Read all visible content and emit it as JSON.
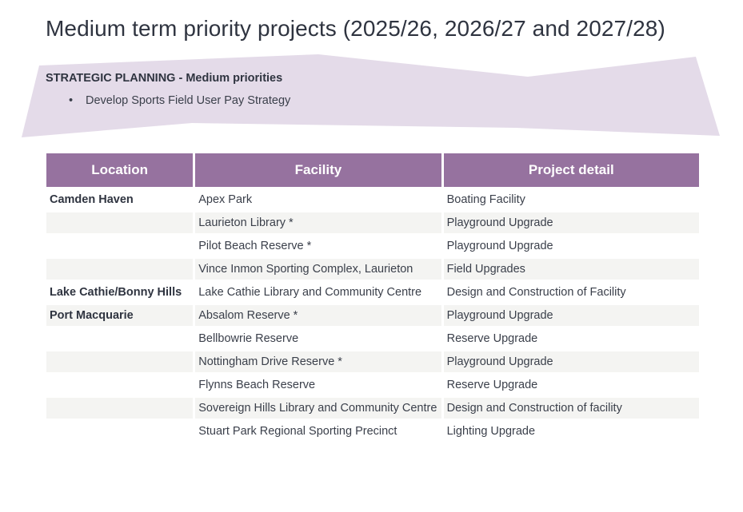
{
  "page_title": "Medium term priority projects (2025/26, 2026/27 and 2027/28)",
  "banner": {
    "heading": "STRATEGIC PLANNING - Medium priorities",
    "items": [
      "Develop Sports Field User Pay Strategy"
    ],
    "bullet": "•",
    "fill_color": "#e4dbe9"
  },
  "table": {
    "header_color": "#96729f",
    "headers": {
      "location": "Location",
      "facility": "Facility",
      "detail": "Project detail"
    },
    "rows": [
      {
        "location": "Camden Haven",
        "facility": "Apex Park",
        "detail": "Boating Facility"
      },
      {
        "location": "",
        "facility": "Laurieton Library *",
        "detail": "Playground Upgrade"
      },
      {
        "location": "",
        "facility": "Pilot Beach Reserve *",
        "detail": "Playground Upgrade"
      },
      {
        "location": "",
        "facility": "Vince Inmon Sporting Complex, Laurieton",
        "detail": "Field Upgrades"
      },
      {
        "location": "Lake Cathie/Bonny Hills",
        "facility": "Lake Cathie Library and Community Centre",
        "detail": "Design and Construction of Facility"
      },
      {
        "location": "Port Macquarie",
        "facility": "Absalom Reserve *",
        "detail": "Playground Upgrade"
      },
      {
        "location": "",
        "facility": "Bellbowrie Reserve",
        "detail": "Reserve Upgrade"
      },
      {
        "location": "",
        "facility": "Nottingham Drive Reserve *",
        "detail": "Playground Upgrade"
      },
      {
        "location": "",
        "facility": "Flynns Beach Reserve",
        "detail": "Reserve Upgrade"
      },
      {
        "location": "",
        "facility": "Sovereign Hills Library and Community Centre",
        "detail": "Design and Construction of facility"
      },
      {
        "location": "",
        "facility": "Stuart Park Regional Sporting Precinct",
        "detail": "Lighting Upgrade"
      }
    ]
  }
}
